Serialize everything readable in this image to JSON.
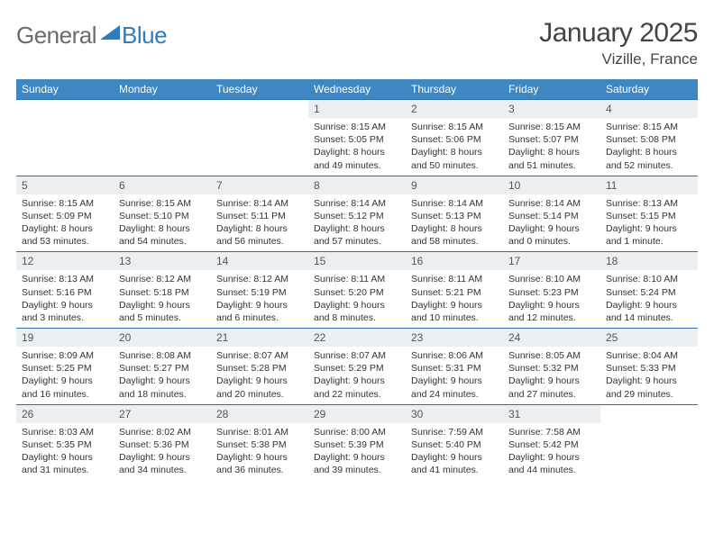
{
  "brand": {
    "part1": "General",
    "part2": "Blue"
  },
  "title": "January 2025",
  "location": "Vizille, France",
  "colors": {
    "header_bg": "#3e87c3",
    "header_text": "#ffffff",
    "daynum_bg": "#eceff1",
    "row_border": "#2f6fa8",
    "brand_gray": "#6b6b6b",
    "brand_blue": "#2f7bbf"
  },
  "day_names": [
    "Sunday",
    "Monday",
    "Tuesday",
    "Wednesday",
    "Thursday",
    "Friday",
    "Saturday"
  ],
  "weeks": [
    [
      {
        "n": "",
        "sr": "",
        "ss": "",
        "d1": "",
        "d2": "",
        "empty": true
      },
      {
        "n": "",
        "sr": "",
        "ss": "",
        "d1": "",
        "d2": "",
        "empty": true
      },
      {
        "n": "",
        "sr": "",
        "ss": "",
        "d1": "",
        "d2": "",
        "empty": true
      },
      {
        "n": "1",
        "sr": "Sunrise: 8:15 AM",
        "ss": "Sunset: 5:05 PM",
        "d1": "Daylight: 8 hours",
        "d2": "and 49 minutes."
      },
      {
        "n": "2",
        "sr": "Sunrise: 8:15 AM",
        "ss": "Sunset: 5:06 PM",
        "d1": "Daylight: 8 hours",
        "d2": "and 50 minutes."
      },
      {
        "n": "3",
        "sr": "Sunrise: 8:15 AM",
        "ss": "Sunset: 5:07 PM",
        "d1": "Daylight: 8 hours",
        "d2": "and 51 minutes."
      },
      {
        "n": "4",
        "sr": "Sunrise: 8:15 AM",
        "ss": "Sunset: 5:08 PM",
        "d1": "Daylight: 8 hours",
        "d2": "and 52 minutes."
      }
    ],
    [
      {
        "n": "5",
        "sr": "Sunrise: 8:15 AM",
        "ss": "Sunset: 5:09 PM",
        "d1": "Daylight: 8 hours",
        "d2": "and 53 minutes."
      },
      {
        "n": "6",
        "sr": "Sunrise: 8:15 AM",
        "ss": "Sunset: 5:10 PM",
        "d1": "Daylight: 8 hours",
        "d2": "and 54 minutes."
      },
      {
        "n": "7",
        "sr": "Sunrise: 8:14 AM",
        "ss": "Sunset: 5:11 PM",
        "d1": "Daylight: 8 hours",
        "d2": "and 56 minutes."
      },
      {
        "n": "8",
        "sr": "Sunrise: 8:14 AM",
        "ss": "Sunset: 5:12 PM",
        "d1": "Daylight: 8 hours",
        "d2": "and 57 minutes."
      },
      {
        "n": "9",
        "sr": "Sunrise: 8:14 AM",
        "ss": "Sunset: 5:13 PM",
        "d1": "Daylight: 8 hours",
        "d2": "and 58 minutes."
      },
      {
        "n": "10",
        "sr": "Sunrise: 8:14 AM",
        "ss": "Sunset: 5:14 PM",
        "d1": "Daylight: 9 hours",
        "d2": "and 0 minutes."
      },
      {
        "n": "11",
        "sr": "Sunrise: 8:13 AM",
        "ss": "Sunset: 5:15 PM",
        "d1": "Daylight: 9 hours",
        "d2": "and 1 minute."
      }
    ],
    [
      {
        "n": "12",
        "sr": "Sunrise: 8:13 AM",
        "ss": "Sunset: 5:16 PM",
        "d1": "Daylight: 9 hours",
        "d2": "and 3 minutes."
      },
      {
        "n": "13",
        "sr": "Sunrise: 8:12 AM",
        "ss": "Sunset: 5:18 PM",
        "d1": "Daylight: 9 hours",
        "d2": "and 5 minutes."
      },
      {
        "n": "14",
        "sr": "Sunrise: 8:12 AM",
        "ss": "Sunset: 5:19 PM",
        "d1": "Daylight: 9 hours",
        "d2": "and 6 minutes."
      },
      {
        "n": "15",
        "sr": "Sunrise: 8:11 AM",
        "ss": "Sunset: 5:20 PM",
        "d1": "Daylight: 9 hours",
        "d2": "and 8 minutes."
      },
      {
        "n": "16",
        "sr": "Sunrise: 8:11 AM",
        "ss": "Sunset: 5:21 PM",
        "d1": "Daylight: 9 hours",
        "d2": "and 10 minutes."
      },
      {
        "n": "17",
        "sr": "Sunrise: 8:10 AM",
        "ss": "Sunset: 5:23 PM",
        "d1": "Daylight: 9 hours",
        "d2": "and 12 minutes."
      },
      {
        "n": "18",
        "sr": "Sunrise: 8:10 AM",
        "ss": "Sunset: 5:24 PM",
        "d1": "Daylight: 9 hours",
        "d2": "and 14 minutes."
      }
    ],
    [
      {
        "n": "19",
        "sr": "Sunrise: 8:09 AM",
        "ss": "Sunset: 5:25 PM",
        "d1": "Daylight: 9 hours",
        "d2": "and 16 minutes."
      },
      {
        "n": "20",
        "sr": "Sunrise: 8:08 AM",
        "ss": "Sunset: 5:27 PM",
        "d1": "Daylight: 9 hours",
        "d2": "and 18 minutes."
      },
      {
        "n": "21",
        "sr": "Sunrise: 8:07 AM",
        "ss": "Sunset: 5:28 PM",
        "d1": "Daylight: 9 hours",
        "d2": "and 20 minutes."
      },
      {
        "n": "22",
        "sr": "Sunrise: 8:07 AM",
        "ss": "Sunset: 5:29 PM",
        "d1": "Daylight: 9 hours",
        "d2": "and 22 minutes."
      },
      {
        "n": "23",
        "sr": "Sunrise: 8:06 AM",
        "ss": "Sunset: 5:31 PM",
        "d1": "Daylight: 9 hours",
        "d2": "and 24 minutes."
      },
      {
        "n": "24",
        "sr": "Sunrise: 8:05 AM",
        "ss": "Sunset: 5:32 PM",
        "d1": "Daylight: 9 hours",
        "d2": "and 27 minutes."
      },
      {
        "n": "25",
        "sr": "Sunrise: 8:04 AM",
        "ss": "Sunset: 5:33 PM",
        "d1": "Daylight: 9 hours",
        "d2": "and 29 minutes."
      }
    ],
    [
      {
        "n": "26",
        "sr": "Sunrise: 8:03 AM",
        "ss": "Sunset: 5:35 PM",
        "d1": "Daylight: 9 hours",
        "d2": "and 31 minutes."
      },
      {
        "n": "27",
        "sr": "Sunrise: 8:02 AM",
        "ss": "Sunset: 5:36 PM",
        "d1": "Daylight: 9 hours",
        "d2": "and 34 minutes."
      },
      {
        "n": "28",
        "sr": "Sunrise: 8:01 AM",
        "ss": "Sunset: 5:38 PM",
        "d1": "Daylight: 9 hours",
        "d2": "and 36 minutes."
      },
      {
        "n": "29",
        "sr": "Sunrise: 8:00 AM",
        "ss": "Sunset: 5:39 PM",
        "d1": "Daylight: 9 hours",
        "d2": "and 39 minutes."
      },
      {
        "n": "30",
        "sr": "Sunrise: 7:59 AM",
        "ss": "Sunset: 5:40 PM",
        "d1": "Daylight: 9 hours",
        "d2": "and 41 minutes."
      },
      {
        "n": "31",
        "sr": "Sunrise: 7:58 AM",
        "ss": "Sunset: 5:42 PM",
        "d1": "Daylight: 9 hours",
        "d2": "and 44 minutes."
      },
      {
        "n": "",
        "sr": "",
        "ss": "",
        "d1": "",
        "d2": "",
        "empty": true
      }
    ]
  ]
}
